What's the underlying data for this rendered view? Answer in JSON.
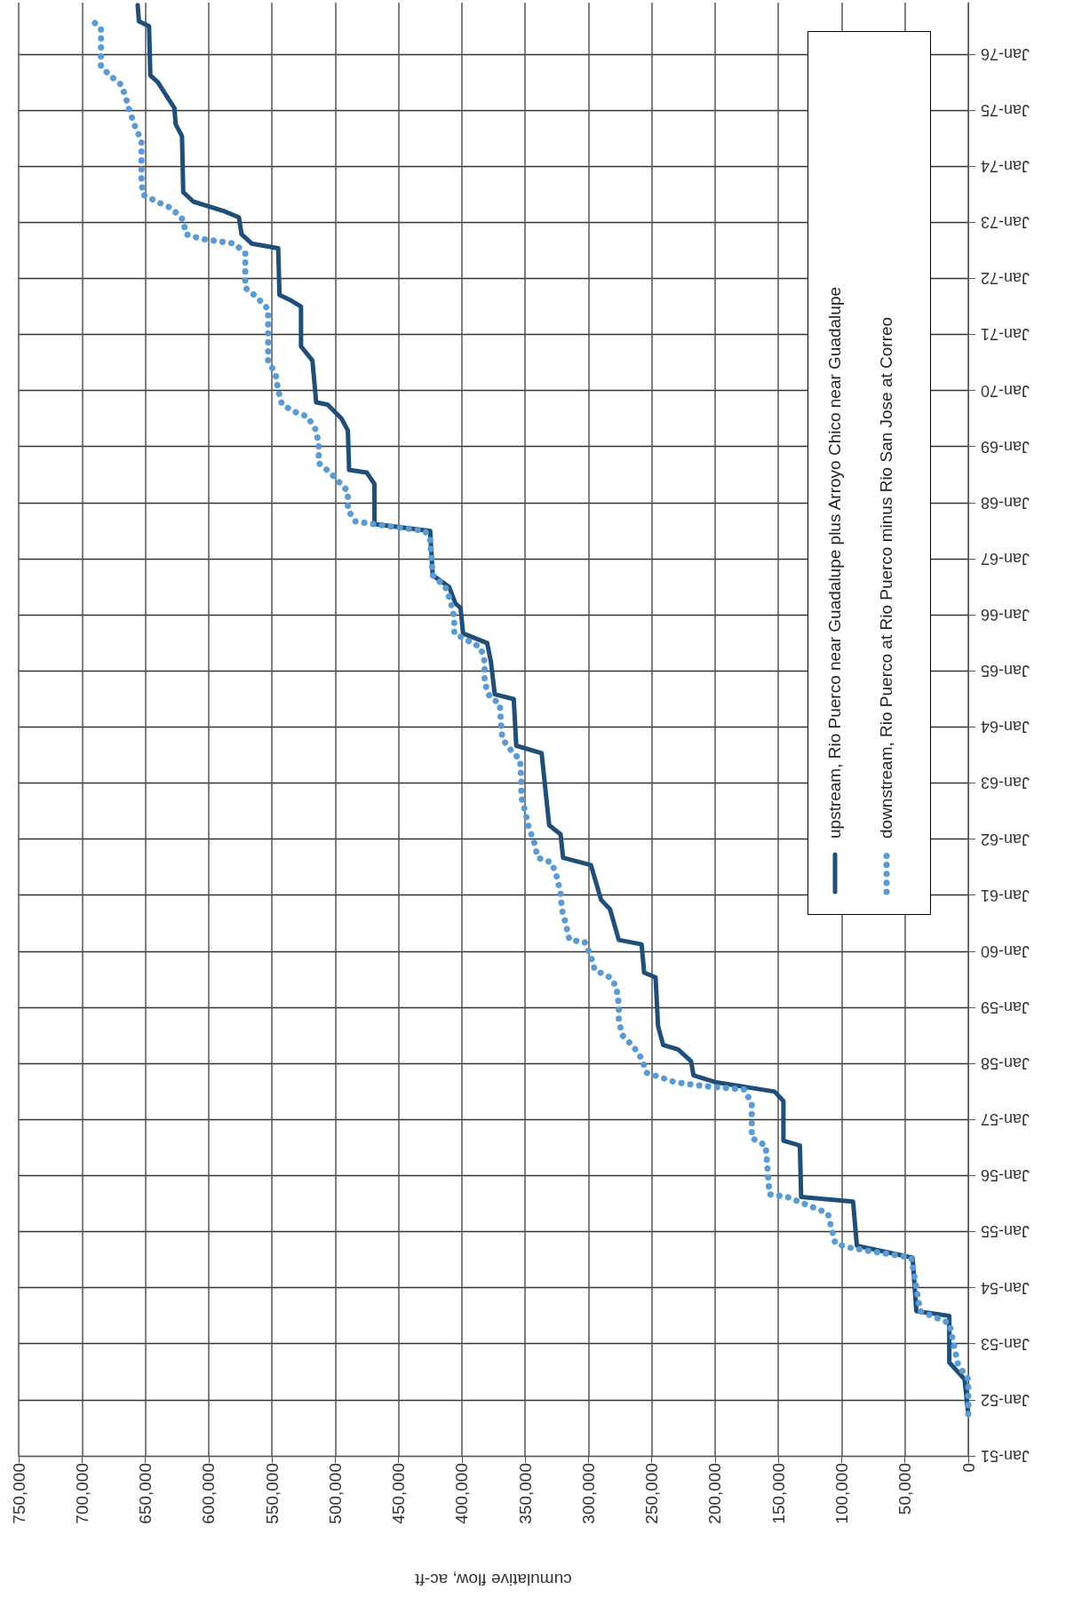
{
  "chart_data": {
    "type": "line",
    "orientation": "horizontal",
    "xlabel": "cumulative flow, ac-ft",
    "legend": "top right",
    "grid": true,
    "xlim": [
      750000,
      0
    ],
    "ylim": [
      "1951-01",
      "1976-12"
    ],
    "xticks": [
      0,
      {
        "value": 50000,
        "label": "50,000"
      },
      {
        "value": 100000,
        "label": "100,000"
      },
      {
        "value": 150000,
        "label": "150,000"
      },
      {
        "value": 200000,
        "label": "200,000"
      },
      {
        "value": 250000,
        "label": "250,000"
      },
      {
        "value": 300000,
        "label": "300,000"
      },
      {
        "value": 350000,
        "label": "350,000"
      },
      {
        "value": 400000,
        "label": "400,000"
      },
      {
        "value": 450000,
        "label": "450,000"
      },
      {
        "value": 500000,
        "label": "500,000"
      },
      {
        "value": 550000,
        "label": "550,000"
      },
      {
        "value": 600000,
        "label": "600,000"
      },
      {
        "value": 650000,
        "label": "650,000"
      },
      {
        "value": 700000,
        "label": "700,000"
      },
      {
        "value": 750000,
        "label": "750,000"
      }
    ],
    "yticks": [
      {
        "value": "1951-01",
        "label": "Jan-51"
      },
      {
        "value": "1952-01",
        "label": "Jan-52"
      },
      {
        "value": "1953-01",
        "label": "Jan-53"
      },
      {
        "value": "1954-01",
        "label": "Jan-54"
      },
      {
        "value": "1955-01",
        "label": "Jan-55"
      },
      {
        "value": "1956-01",
        "label": "Jan-56"
      },
      {
        "value": "1957-01",
        "label": "Jan-57"
      },
      {
        "value": "1958-01",
        "label": "Jan-58"
      },
      {
        "value": "1959-01",
        "label": "Jan-59"
      },
      {
        "value": "1960-01",
        "label": "Jan-60"
      },
      {
        "value": "1961-01",
        "label": "Jan-61"
      },
      {
        "value": "1962-01",
        "label": "Jan-62"
      },
      {
        "value": "1963-01",
        "label": "Jan-63"
      },
      {
        "value": "1964-01",
        "label": "Jan-64"
      },
      {
        "value": "1965-01",
        "label": "Jan-65"
      },
      {
        "value": "1966-01",
        "label": "Jan-66"
      },
      {
        "value": "1967-01",
        "label": "Jan-67"
      },
      {
        "value": "1968-01",
        "label": "Jan-68"
      },
      {
        "value": "1969-01",
        "label": "Jan-69"
      },
      {
        "value": "1970-01",
        "label": "Jan-70"
      },
      {
        "value": "1971-01",
        "label": "Jan-71"
      },
      {
        "value": "1972-01",
        "label": "Jan-72"
      },
      {
        "value": "1973-01",
        "label": "Jan-73"
      },
      {
        "value": "1974-01",
        "label": "Jan-74"
      },
      {
        "value": "1975-01",
        "label": "Jan-75"
      },
      {
        "value": "1976-01",
        "label": "Jan-76"
      }
    ],
    "series": [
      {
        "name": "upstream, Rio Puerco near Guadalupe plus Arroyo Chico near Guadalupe",
        "color": "#1f4e79",
        "line_style": "solid",
        "values": [
          0,
          3000,
          15000,
          15000,
          41000,
          44000,
          88000,
          91000,
          132000,
          133000,
          146000,
          146000,
          153000,
          200000,
          217000,
          219000,
          229000,
          241000,
          245000,
          247000,
          256000,
          258000,
          276000,
          283000,
          290000,
          298000,
          320000,
          322000,
          331000,
          337000,
          357000,
          359000,
          374000,
          377000,
          380000,
          399000,
          401000,
          405000,
          410000,
          423000,
          425000,
          469000,
          469000,
          475000,
          489000,
          490000,
          495000,
          506000,
          515000,
          518000,
          527000,
          527000,
          536000,
          544000,
          545000,
          566000,
          574000,
          576000,
          588000,
          612000,
          620000,
          621000,
          626000,
          627000,
          633000,
          640000,
          646000,
          647000,
          655000,
          656000
        ],
        "x": [
          "1951-10-01",
          "1952-05-15",
          "1952-09-01",
          "1953-07-01",
          "1953-08-01",
          "1954-07-15",
          "1954-10-01",
          "1955-07-15",
          "1955-08-15",
          "1956-07-15",
          "1956-08-15",
          "1957-05-01",
          "1957-07-01",
          "1957-09-01",
          "1957-10-15",
          "1958-01-15",
          "1958-04-01",
          "1958-05-01",
          "1958-09-01",
          "1959-07-15",
          "1959-08-15",
          "1960-02-15",
          "1960-03-15",
          "1960-10-01",
          "1960-12-01",
          "1961-07-15",
          "1961-09-01",
          "1962-02-01",
          "1962-04-01",
          "1963-07-15",
          "1963-09-01",
          "1964-07-01",
          "1964-08-01",
          "1965-03-01",
          "1965-07-01",
          "1965-09-01",
          "1966-02-15",
          "1966-03-15",
          "1966-07-01",
          "1966-09-15",
          "1967-07-01",
          "1967-08-15",
          "1968-05-01",
          "1968-07-15",
          "1968-08-01",
          "1969-04-15",
          "1969-07-01",
          "1969-10-01",
          "1969-10-15",
          "1970-07-15",
          "1970-10-15",
          "1971-07-01",
          "1971-08-15",
          "1971-09-15",
          "1972-07-15",
          "1972-08-15",
          "1972-10-15",
          "1973-02-01",
          "1973-03-15",
          "1973-05-15",
          "1973-07-15",
          "1974-07-15",
          "1974-10-01",
          "1975-01-15",
          "1975-04-01",
          "1975-07-01",
          "1975-08-15",
          "1976-07-01",
          "1976-08-01",
          "1976-11-15"
        ]
      },
      {
        "name": "downstream, Rio Puerco at Rio Puerco minus Rio San Jose at Correo",
        "color": "#5b9bd5",
        "line_style": "dotted",
        "values": [
          0,
          0,
          8000,
          15000,
          38000,
          45000,
          92000,
          105000,
          111000,
          143000,
          157000,
          160000,
          171000,
          171000,
          177000,
          203000,
          218000,
          232000,
          254000,
          258000,
          264000,
          273000,
          276000,
          276000,
          278000,
          283000,
          295000,
          298000,
          303000,
          315000,
          318000,
          321000,
          322000,
          325000,
          329000,
          340000,
          343000,
          347000,
          350000,
          353000,
          353000,
          354000,
          361000,
          368000,
          369000,
          370000,
          378000,
          382000,
          382000,
          385000,
          395000,
          406000,
          406000,
          409000,
          413000,
          423000,
          425000,
          429000,
          458000,
          484000,
          490000,
          490000,
          504000,
          513000,
          513000,
          515000,
          522000,
          532000,
          542000,
          545000,
          547000,
          553000,
          553000,
          562000,
          571000,
          571000,
          580000,
          606000,
          618000,
          620000,
          629000,
          641000,
          652000,
          653000,
          653000,
          658000,
          662000,
          665000,
          669000,
          678000,
          685000,
          685000,
          693000
        ],
        "x": [
          "1951-10-01",
          "1952-05-15",
          "1952-08-15",
          "1953-05-15",
          "1953-08-01",
          "1954-07-15",
          "1954-09-15",
          "1954-10-15",
          "1955-05-01",
          "1955-08-15",
          "1955-09-01",
          "1956-07-15",
          "1956-09-01",
          "1957-04-15",
          "1957-07-15",
          "1957-08-01",
          "1957-08-15",
          "1957-09-01",
          "1957-11-01",
          "1958-02-01",
          "1958-04-15",
          "1958-07-01",
          "1958-10-01",
          "1959-01-15",
          "1959-05-15",
          "1959-07-15",
          "1959-09-01",
          "1959-12-01",
          "1960-03-01",
          "1960-03-15",
          "1960-07-01",
          "1960-10-01",
          "1961-01-15",
          "1961-05-01",
          "1961-08-01",
          "1961-09-01",
          "1961-12-15",
          "1962-03-15",
          "1962-07-01",
          "1962-10-01",
          "1963-01-15",
          "1963-06-01",
          "1963-08-01",
          "1963-10-15",
          "1964-01-15",
          "1964-06-01",
          "1964-07-15",
          "1964-10-15",
          "1965-03-01",
          "1965-06-01",
          "1965-07-15",
          "1965-09-01",
          "1965-12-15",
          "1966-04-01",
          "1966-07-01",
          "1966-09-15",
          "1967-05-01",
          "1967-07-01",
          "1967-08-01",
          "1967-09-01",
          "1967-11-15",
          "1968-03-15",
          "1968-07-15",
          "1968-09-15",
          "1969-01-15",
          "1969-04-15",
          "1969-07-15",
          "1969-08-15",
          "1969-10-01",
          "1970-01-01",
          "1970-04-15",
          "1970-07-15",
          "1971-06-15",
          "1971-09-01",
          "1971-11-01",
          "1972-06-15",
          "1972-08-15",
          "1972-09-15",
          "1972-10-15",
          "1973-01-15",
          "1973-04-01",
          "1973-05-15",
          "1973-07-01",
          "1973-10-15",
          "1974-06-15",
          "1974-09-15",
          "1974-12-15",
          "1975-03-15",
          "1975-06-15",
          "1975-08-15",
          "1975-10-15",
          "1976-06-15",
          "1976-08-15"
        ]
      }
    ]
  }
}
